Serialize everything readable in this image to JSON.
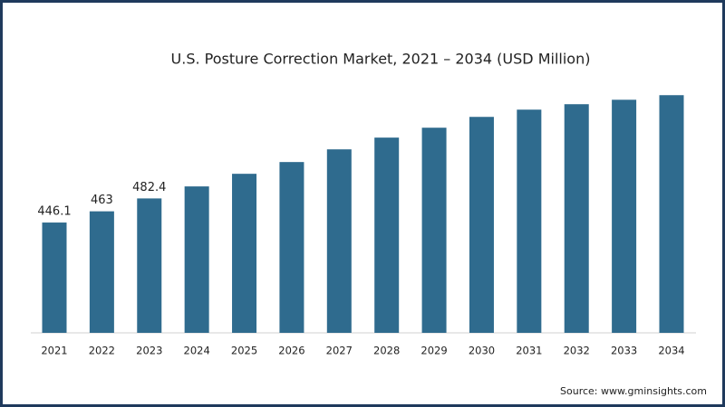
{
  "chart_data": {
    "type": "bar",
    "title": "U.S. Posture Correction Market, 2021 – 2034 (USD Million)",
    "categories": [
      "2021",
      "2022",
      "2023",
      "2024",
      "2025",
      "2026",
      "2027",
      "2028",
      "2029",
      "2030",
      "2031",
      "2032",
      "2033",
      "2034"
    ],
    "values": [
      446.1,
      463,
      482.4,
      500.5,
      519.5,
      537.2,
      556.3,
      574,
      588.9,
      605.2,
      616.1,
      624.3,
      631,
      637.9
    ],
    "value_labels": [
      "446.1",
      "463",
      "482.4",
      null,
      null,
      null,
      null,
      null,
      null,
      null,
      null,
      null,
      null,
      null
    ],
    "color": "#2f6b8e",
    "ylim": [
      280,
      660
    ],
    "source": "Source: www.gminsights.com"
  }
}
